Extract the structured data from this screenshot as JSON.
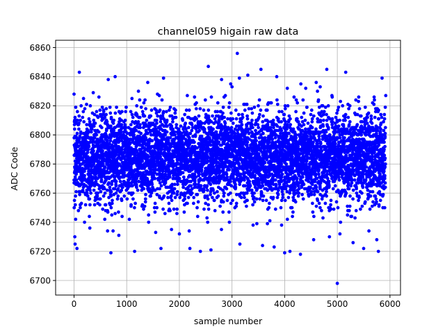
{
  "chart_data": {
    "type": "scatter",
    "title": "channel059 higain raw data",
    "xlabel": "sample number",
    "ylabel": "ADC Code",
    "xlim": [
      -350,
      6200
    ],
    "ylim": [
      6690,
      6865
    ],
    "xticks": [
      0,
      1000,
      2000,
      3000,
      4000,
      5000,
      6000
    ],
    "yticks": [
      6700,
      6720,
      6740,
      6760,
      6780,
      6800,
      6820,
      6840,
      6860
    ],
    "grid": true,
    "marker_color": "#0000ff",
    "series": [
      {
        "n_points": 5915,
        "center": 6785,
        "typical_range": [
          6755,
          6815
        ],
        "x": [
          0,
          8,
          15,
          20,
          30,
          40,
          55,
          80,
          100,
          120,
          150,
          180,
          200,
          250,
          300,
          350,
          400,
          450,
          500,
          550,
          600,
          650,
          700,
          750,
          780,
          850,
          900,
          1000,
          1050,
          1100,
          1150,
          1200,
          1250,
          1300,
          1400,
          1500,
          1550,
          1600,
          1650,
          1700,
          1750,
          1800,
          1900,
          2000,
          2050,
          2100,
          2200,
          2300,
          2400,
          2450,
          2550,
          2600,
          2650,
          2800,
          2850,
          2950,
          3000,
          3100,
          3150,
          3200,
          3300,
          3400,
          3500,
          3550,
          3580,
          3600,
          3700,
          3800,
          3850,
          3900,
          4000,
          4050,
          4100,
          4200,
          4300,
          4400,
          4500,
          4550,
          4600,
          4650,
          4700,
          4800,
          4850,
          4950,
          5000,
          5050,
          5100,
          5150,
          5200,
          5300,
          5400,
          5450,
          5500,
          5550,
          5600,
          5700,
          5750,
          5780,
          5850,
          5900,
          5920
        ],
        "y": [
          6828,
          6755,
          6730,
          6725,
          6742,
          6808,
          6722,
          6792,
          6843,
          6810,
          6768,
          6825,
          6740,
          6795,
          6736,
          6815,
          6755,
          6778,
          6806,
          6772,
          6748,
          6838,
          6719,
          6790,
          6840,
          6731,
          6762,
          6798,
          6742,
          6825,
          6720,
          6784,
          6812,
          6752,
          6836,
          6770,
          6733,
          6805,
          6722,
          6839,
          6776,
          6748,
          6818,
          6732,
          6787,
          6758,
          6722,
          6812,
          6720,
          6795,
          6847,
          6721,
          6774,
          6735,
          6826,
          6766,
          6833,
          6856,
          6725,
          6790,
          6841,
          6738,
          6820,
          6845,
          6724,
          6782,
          6750,
          6723,
          6840,
          6767,
          6719,
          6832,
          6720,
          6779,
          6718,
          6832,
          6760,
          6728,
          6836,
          6792,
          6748,
          6845,
          6730,
          6802,
          6698,
          6732,
          6774,
          6810,
          6748,
          6726,
          6803,
          6768,
          6722,
          6790,
          6734,
          6826,
          6728,
          6720,
          6839,
          6750,
          6827
        ]
      }
    ]
  }
}
